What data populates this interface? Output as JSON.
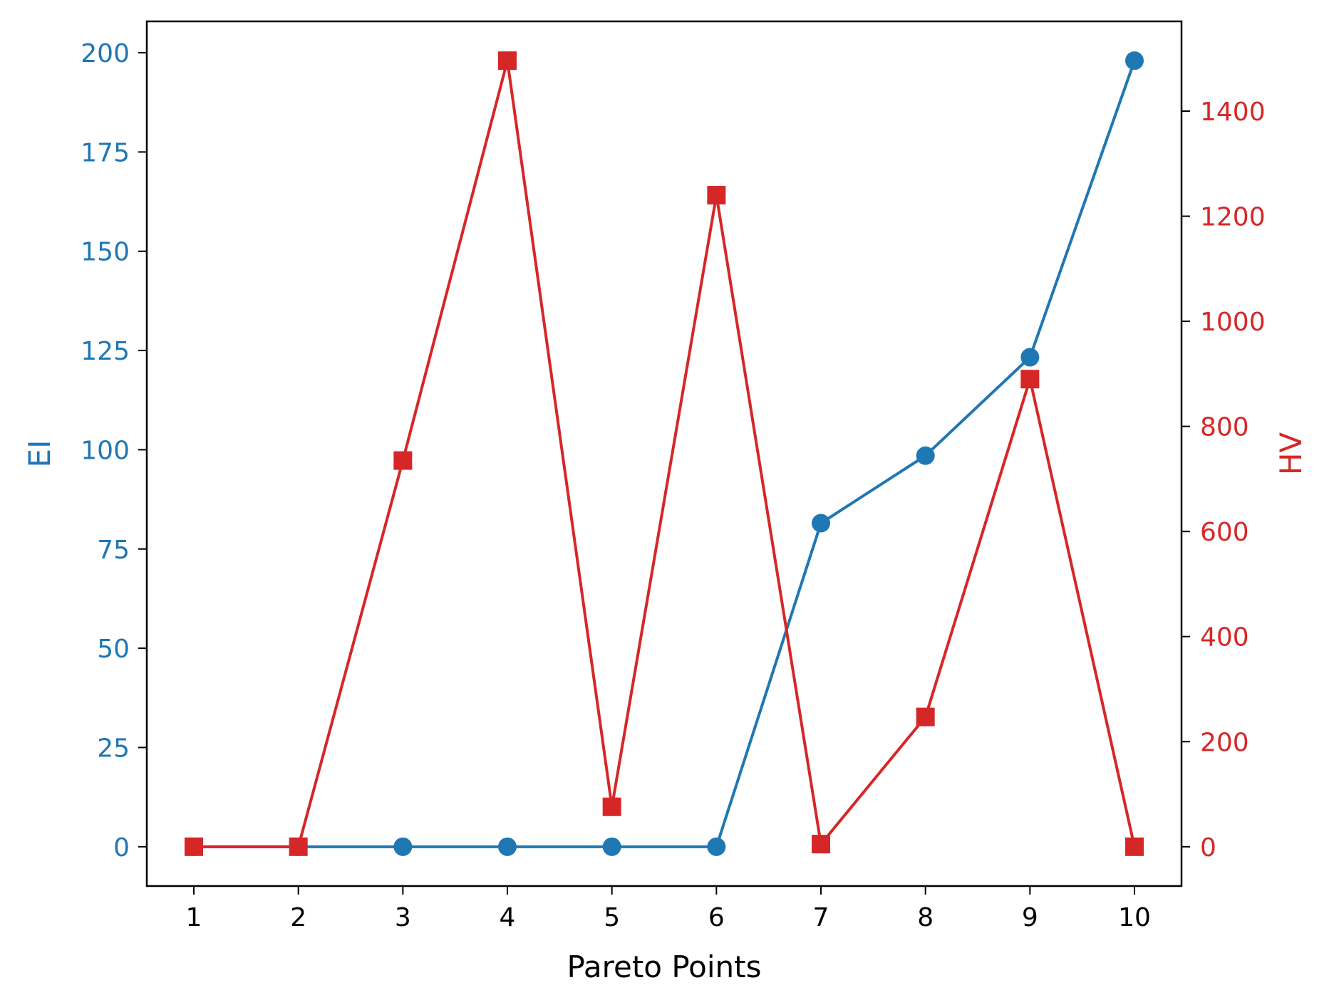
{
  "chart_data": {
    "type": "line",
    "x": [
      1,
      2,
      3,
      4,
      5,
      6,
      7,
      8,
      9,
      10
    ],
    "xlabel": "Pareto Points",
    "x_ticks": [
      "1",
      "2",
      "3",
      "4",
      "5",
      "6",
      "7",
      "8",
      "9",
      "10"
    ],
    "xlim": [
      0.55,
      10.45
    ],
    "left_axis": {
      "label": "EI",
      "color": "#1f77b4",
      "ylim": [
        -9.9,
        207.9
      ],
      "ticks": [
        0,
        25,
        50,
        75,
        100,
        125,
        150,
        175,
        200
      ],
      "tick_labels": [
        "0",
        "25",
        "50",
        "75",
        "100",
        "125",
        "150",
        "175",
        "200"
      ]
    },
    "right_axis": {
      "label": "HV",
      "color": "#d62728",
      "ylim": [
        -74.8,
        1570.8
      ],
      "ticks": [
        0,
        200,
        400,
        600,
        800,
        1000,
        1200,
        1400
      ],
      "tick_labels": [
        "0",
        "200",
        "400",
        "600",
        "800",
        "1000",
        "1200",
        "1400"
      ]
    },
    "series": [
      {
        "axis": "left",
        "marker": "circle",
        "color": "#1f77b4",
        "values": [
          0,
          0,
          0,
          0,
          0,
          0,
          81.5,
          98.5,
          123.3,
          198.0
        ]
      },
      {
        "axis": "right",
        "marker": "square",
        "color": "#d62728",
        "values": [
          0,
          0,
          735,
          1496,
          76,
          1240,
          5,
          247,
          890,
          0
        ]
      }
    ]
  }
}
